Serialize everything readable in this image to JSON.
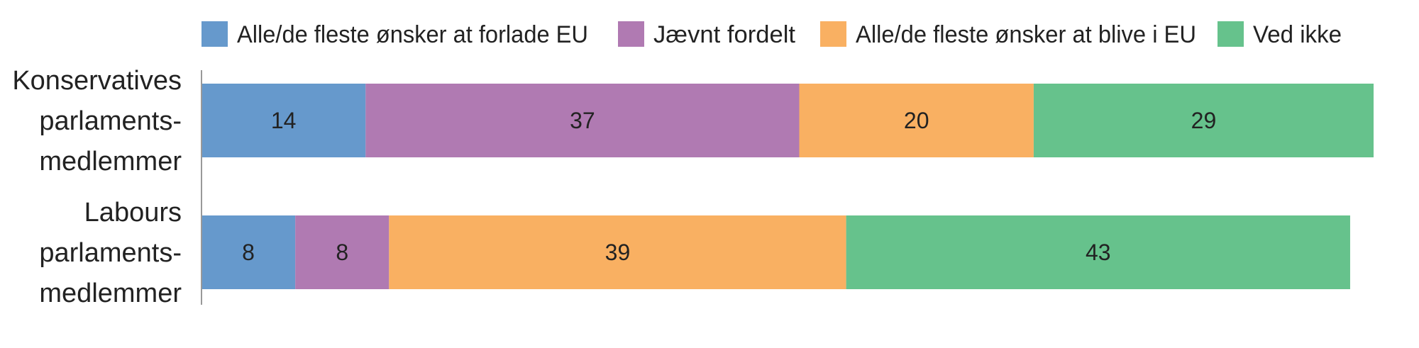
{
  "chart_data": {
    "type": "bar",
    "orientation": "horizontal",
    "stacked": true,
    "categories": [
      [
        "Konservatives",
        "parlaments-",
        "medlemmer"
      ],
      [
        "Labours",
        "parlaments-",
        "medlemmer"
      ]
    ],
    "series": [
      {
        "name": "Alle/de fleste ønsker at forlade EU",
        "color": "#6699cc",
        "values": [
          14,
          8
        ]
      },
      {
        "name": "Jævnt fordelt",
        "color": "#b07ab2",
        "values": [
          37,
          8
        ]
      },
      {
        "name": "Alle/de fleste ønsker at blive i EU",
        "color": "#f9b062",
        "values": [
          20,
          39
        ]
      },
      {
        "name": "Ved ikke",
        "color": "#66c28c",
        "values": [
          29,
          43
        ]
      }
    ],
    "xlim": [
      0,
      100
    ],
    "grid": false,
    "legend": "top",
    "data_labels": true
  }
}
